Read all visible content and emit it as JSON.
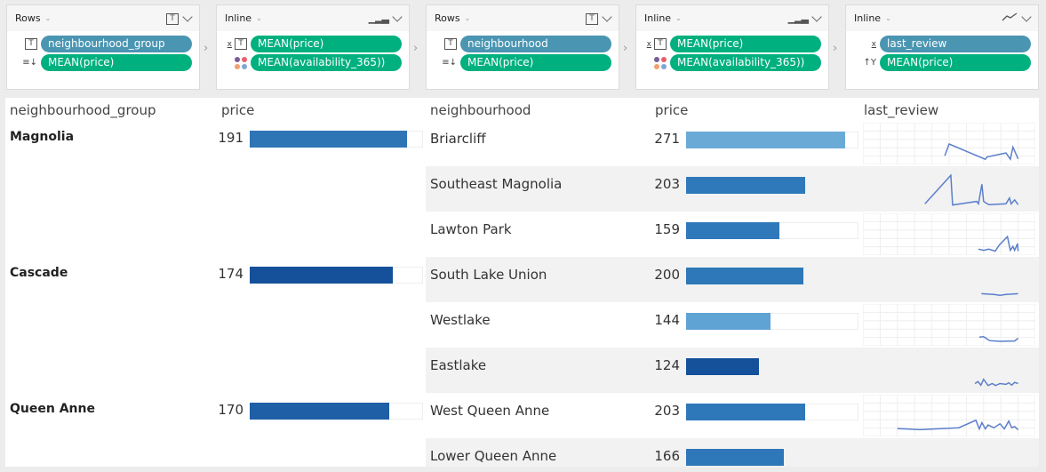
{
  "shelves": [
    {
      "mode": "Rows",
      "type_icon": "text-icon",
      "fields": [
        {
          "icon": "text-icon",
          "label": "neighbourhood_group",
          "kind": "dimension"
        },
        {
          "icon": "sort-icon",
          "label": "MEAN(price)",
          "kind": "measure"
        }
      ]
    },
    {
      "mode": "Inline",
      "type_icon": "bar-chart-icon",
      "fields": [
        {
          "icon": "x-text-icon",
          "label": "MEAN(price)",
          "kind": "measure"
        },
        {
          "icon": "color-icon",
          "label": "MEAN(availability_365))",
          "kind": "measure"
        }
      ]
    },
    {
      "mode": "Rows",
      "type_icon": "text-icon",
      "fields": [
        {
          "icon": "text-icon",
          "label": "neighbourhood",
          "kind": "dimension"
        },
        {
          "icon": "sort-icon",
          "label": "MEAN(price)",
          "kind": "measure"
        }
      ]
    },
    {
      "mode": "Inline",
      "type_icon": "bar-chart-icon",
      "fields": [
        {
          "icon": "x-text-icon",
          "label": "MEAN(price)",
          "kind": "measure"
        },
        {
          "icon": "color-icon",
          "label": "MEAN(availability_365))",
          "kind": "measure"
        }
      ]
    },
    {
      "mode": "Inline",
      "type_icon": "line-chart-icon",
      "fields": [
        {
          "icon": "x-icon",
          "label": "last_review",
          "kind": "dimension"
        },
        {
          "icon": "y-icon",
          "label": "MEAN(price)",
          "kind": "measure"
        }
      ]
    }
  ],
  "table": {
    "headers": {
      "group": "neighbourhood_group",
      "group_price": "price",
      "neighbourhood": "neighbourhood",
      "price": "price",
      "last_review": "last_review"
    },
    "groups": [
      {
        "name": "Magnolia",
        "price": "191",
        "value": 191,
        "color": "#2e75b5"
      },
      {
        "name": "Cascade",
        "price": "174",
        "value": 174,
        "color": "#15519a"
      },
      {
        "name": "Queen Anne",
        "price": "170",
        "value": 170,
        "color": "#1e5fa6"
      }
    ],
    "neighbourhoods": [
      {
        "name": "Briarcliff",
        "price": "271",
        "value": 271,
        "color": "#6aaad6",
        "spark": [
          [
            47.5,
            20
          ],
          [
            50,
            50
          ],
          [
            71,
            11
          ],
          [
            72,
            17
          ],
          [
            83,
            27
          ],
          [
            85.5,
            11
          ],
          [
            87,
            42
          ],
          [
            90,
            12
          ]
        ]
      },
      {
        "name": "Southeast Magnolia",
        "price": "203",
        "value": 203,
        "color": "#2f79ba",
        "spark": [
          [
            36,
            13
          ],
          [
            51,
            86
          ],
          [
            52,
            10
          ],
          [
            66,
            19
          ],
          [
            67,
            13
          ],
          [
            69,
            63
          ],
          [
            70,
            19
          ],
          [
            73,
            11
          ],
          [
            83,
            13
          ],
          [
            85,
            28
          ],
          [
            86,
            13
          ],
          [
            88,
            23
          ],
          [
            90,
            11
          ]
        ]
      },
      {
        "name": "Lawton Park",
        "price": "159",
        "value": 159,
        "color": "#2f79ba",
        "spark": [
          [
            67,
            13
          ],
          [
            70,
            10
          ],
          [
            73,
            13
          ],
          [
            76.7,
            8
          ],
          [
            79,
            23
          ],
          [
            83.8,
            45
          ],
          [
            85,
            20
          ],
          [
            85.5,
            10
          ],
          [
            87,
            20
          ],
          [
            88,
            10
          ],
          [
            89.7,
            27
          ],
          [
            90,
            8
          ]
        ]
      },
      {
        "name": "South Lake Union",
        "price": "200",
        "value": 200,
        "color": "#2e77b8",
        "spark": [
          [
            68.7,
            15
          ],
          [
            76,
            13
          ],
          [
            79.5,
            11
          ],
          [
            83,
            13
          ],
          [
            90,
            15
          ]
        ]
      },
      {
        "name": "Westlake",
        "price": "144",
        "value": 144,
        "color": "#5fa3d4",
        "spark": [
          [
            67.5,
            20
          ],
          [
            70,
            21
          ],
          [
            73.5,
            11
          ],
          [
            79.5,
            9
          ],
          [
            88,
            10
          ],
          [
            90,
            17
          ]
        ]
      },
      {
        "name": "Eastlake",
        "price": "124",
        "value": 124,
        "color": "#14519a",
        "spark": [
          [
            65,
            17
          ],
          [
            66.7,
            22
          ],
          [
            68.4,
            13
          ],
          [
            70,
            28
          ],
          [
            72.6,
            12
          ],
          [
            75,
            17
          ],
          [
            76.9,
            12
          ],
          [
            79.5,
            17
          ],
          [
            83,
            15
          ],
          [
            84.6,
            19
          ],
          [
            86.3,
            13
          ],
          [
            88,
            20
          ],
          [
            90,
            17
          ]
        ]
      },
      {
        "name": "West Queen Anne",
        "price": "203",
        "value": 203,
        "color": "#2e77b8",
        "spark": [
          [
            20,
            18
          ],
          [
            33,
            15
          ],
          [
            55.6,
            20
          ],
          [
            65.5,
            39
          ],
          [
            67.5,
            17
          ],
          [
            69,
            33
          ],
          [
            71,
            17
          ],
          [
            72.6,
            27
          ],
          [
            76,
            20
          ],
          [
            79.5,
            30
          ],
          [
            82,
            17
          ],
          [
            84.6,
            37
          ],
          [
            86.3,
            20
          ],
          [
            88,
            23
          ],
          [
            90,
            15
          ]
        ]
      },
      {
        "name": "Lower Queen Anne",
        "price": "166",
        "value": 166,
        "color": "#2e77b8",
        "spark": []
      }
    ]
  }
}
